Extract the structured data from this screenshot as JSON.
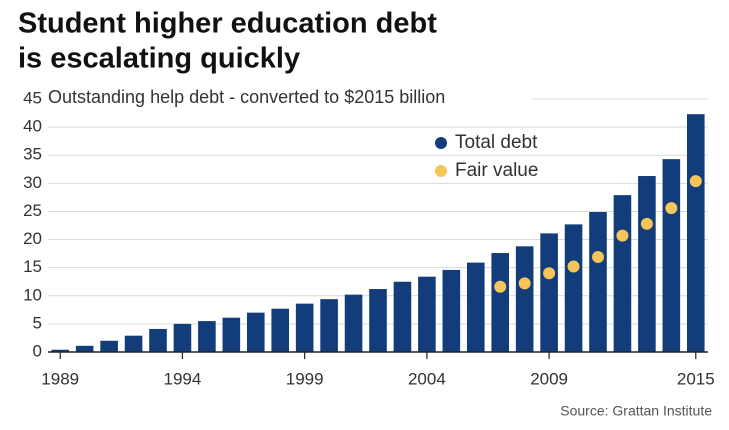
{
  "chart_data": {
    "type": "bar",
    "title": [
      "Student higher education debt",
      "is escalating quickly"
    ],
    "subtitle": "Outstanding help debt - converted to $2015 billion",
    "source": "Source: Grattan Institute",
    "x": [
      1989,
      1990,
      1991,
      1992,
      1993,
      1994,
      1995,
      1996,
      1997,
      1998,
      1999,
      2000,
      2001,
      2002,
      2003,
      2004,
      2005,
      2006,
      2007,
      2008,
      2009,
      2010,
      2011,
      2012,
      2013,
      2014,
      2015
    ],
    "series": [
      {
        "name": "Total debt",
        "color": "#123d7a",
        "mark": "bar",
        "values": [
          0.4,
          1.1,
          2.0,
          2.9,
          4.1,
          5.0,
          5.5,
          6.1,
          7.0,
          7.7,
          8.6,
          9.4,
          10.2,
          11.2,
          12.5,
          13.4,
          14.6,
          15.9,
          17.6,
          18.8,
          21.1,
          22.7,
          24.9,
          27.9,
          31.3,
          34.3,
          42.3
        ]
      },
      {
        "name": "Fair value",
        "color": "#f5c55a",
        "mark": "dot",
        "values": [
          null,
          null,
          null,
          null,
          null,
          null,
          null,
          null,
          null,
          null,
          null,
          null,
          null,
          null,
          null,
          null,
          null,
          null,
          11.6,
          12.2,
          14.0,
          15.2,
          16.9,
          20.7,
          22.8,
          25.6,
          30.4
        ]
      }
    ],
    "xlim": [
      1988.5,
      2015.5
    ],
    "xticks": [
      1989,
      1994,
      1999,
      2004,
      2009,
      2015
    ],
    "ylim": [
      0,
      45
    ],
    "yticks": [
      0,
      5,
      10,
      15,
      20,
      25,
      30,
      35,
      40,
      45
    ],
    "grid": true
  }
}
